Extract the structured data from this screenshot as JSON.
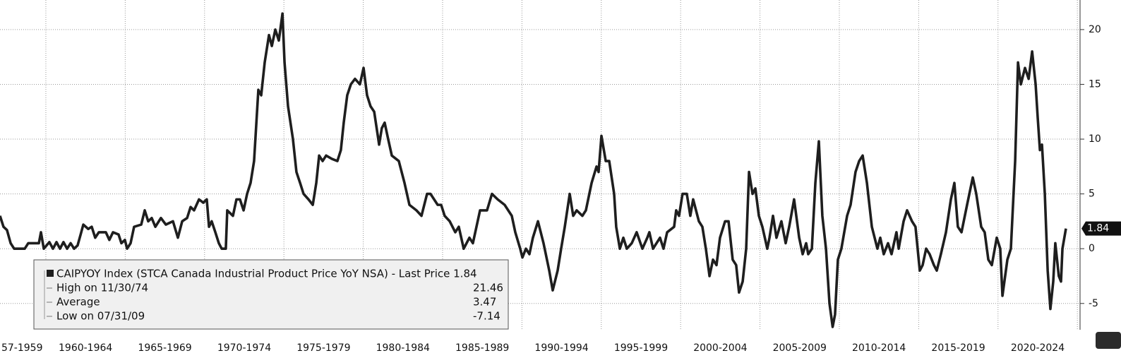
{
  "chart_data": {
    "type": "line",
    "x": [
      1957.11,
      1957.33,
      1957.55,
      1957.78,
      1958.0,
      1958.67,
      1958.89,
      1959.56,
      1959.69,
      1959.87,
      1960.22,
      1960.45,
      1960.67,
      1960.89,
      1961.11,
      1961.34,
      1961.56,
      1961.78,
      1962.0,
      1962.23,
      1962.36,
      1962.67,
      1962.89,
      1963.11,
      1963.34,
      1963.78,
      1964.0,
      1964.23,
      1964.58,
      1964.76,
      1964.98,
      1965.12,
      1965.34,
      1965.56,
      1966.01,
      1966.23,
      1966.45,
      1966.67,
      1966.9,
      1967.25,
      1967.56,
      1968.01,
      1968.32,
      1968.59,
      1968.9,
      1969.12,
      1969.34,
      1969.65,
      1969.92,
      1970.14,
      1970.28,
      1970.45,
      1970.68,
      1970.9,
      1971.08,
      1971.34,
      1971.43,
      1971.79,
      1972.01,
      1972.23,
      1972.46,
      1972.68,
      1972.9,
      1973.12,
      1973.39,
      1973.57,
      1973.79,
      1974.06,
      1974.24,
      1974.46,
      1974.68,
      1974.91,
      1975.04,
      1975.26,
      1975.57,
      1975.79,
      1976.02,
      1976.24,
      1976.55,
      1976.82,
      1977.04,
      1977.22,
      1977.44,
      1977.66,
      1978.02,
      1978.37,
      1978.59,
      1978.77,
      1978.99,
      1979.22,
      1979.48,
      1979.79,
      1980.02,
      1980.24,
      1980.46,
      1980.69,
      1981.0,
      1981.17,
      1981.35,
      1981.57,
      1981.8,
      1982.24,
      1982.6,
      1982.91,
      1983.35,
      1983.67,
      1984.02,
      1984.24,
      1984.69,
      1984.91,
      1985.13,
      1985.45,
      1985.8,
      1986.02,
      1986.33,
      1986.69,
      1986.91,
      1987.36,
      1987.8,
      1988.11,
      1988.47,
      1988.91,
      1989.36,
      1989.58,
      1989.89,
      1990.03,
      1990.25,
      1990.47,
      1990.69,
      1991.01,
      1991.36,
      1991.72,
      1991.94,
      1992.25,
      1992.47,
      1992.7,
      1993.01,
      1993.23,
      1993.45,
      1993.81,
      1994.03,
      1994.39,
      1994.7,
      1994.83,
      1995.01,
      1995.28,
      1995.5,
      1995.81,
      1995.94,
      1996.17,
      1996.39,
      1996.61,
      1996.92,
      1997.23,
      1997.59,
      1997.9,
      1998.03,
      1998.26,
      1998.7,
      1998.92,
      1999.15,
      1999.59,
      1999.72,
      1999.9,
      2000.12,
      2000.39,
      2000.61,
      2000.79,
      2001.15,
      2001.37,
      2001.59,
      2001.82,
      2002.04,
      2002.26,
      2002.48,
      2002.8,
      2003.02,
      2003.28,
      2003.5,
      2003.68,
      2003.91,
      2004.13,
      2004.31,
      2004.53,
      2004.71,
      2004.93,
      2005.15,
      2005.46,
      2005.6,
      2005.82,
      2006.04,
      2006.35,
      2006.62,
      2006.84,
      2007.15,
      2007.47,
      2007.69,
      2007.91,
      2008.04,
      2008.27,
      2008.49,
      2008.71,
      2008.93,
      2009.16,
      2009.38,
      2009.58,
      2009.73,
      2009.91,
      2010.13,
      2010.49,
      2010.71,
      2011.02,
      2011.25,
      2011.47,
      2011.74,
      2012.05,
      2012.4,
      2012.58,
      2012.8,
      2013.07,
      2013.29,
      2013.6,
      2013.74,
      2014.05,
      2014.27,
      2014.58,
      2014.8,
      2015.07,
      2015.25,
      2015.47,
      2015.69,
      2015.96,
      2016.14,
      2016.4,
      2016.72,
      2017.03,
      2017.25,
      2017.47,
      2017.7,
      2018.05,
      2018.41,
      2018.63,
      2018.94,
      2019.16,
      2019.39,
      2019.61,
      2019.92,
      2020.14,
      2020.28,
      2020.59,
      2020.81,
      2021.08,
      2021.26,
      2021.44,
      2021.7,
      2021.93,
      2022.15,
      2022.37,
      2022.5,
      2022.64,
      2022.77,
      2022.95,
      2023.13,
      2023.3,
      2023.48,
      2023.61,
      2023.83,
      2023.97,
      2024.06,
      2024.28
    ],
    "series": [
      {
        "name": "CAIPYOY Index (STCA Canada Industrial Product Price YoY NSA) - Last Price 1.84",
        "color": "#1e1e1e",
        "values": [
          3,
          2,
          1.7,
          0.5,
          0,
          0,
          0.5,
          0.5,
          1.5,
          0,
          0.6,
          0,
          0.6,
          0,
          0.6,
          0,
          0.5,
          0,
          0.3,
          1.5,
          2.2,
          1.8,
          2,
          1,
          1.5,
          1.5,
          0.8,
          1.5,
          1.3,
          0.5,
          0.8,
          0,
          0.5,
          2,
          2.2,
          3.5,
          2.5,
          2.8,
          2,
          2.8,
          2.2,
          2.5,
          1,
          2.5,
          2.8,
          3.8,
          3.5,
          4.5,
          4.2,
          4.5,
          2,
          2.5,
          1.5,
          0.5,
          0,
          0,
          3.5,
          3,
          4.5,
          4.5,
          3.5,
          5,
          6,
          8,
          14.5,
          14,
          17,
          19.5,
          18.5,
          20,
          19,
          21.46,
          17,
          13,
          10,
          7,
          6,
          5,
          4.5,
          4,
          6,
          8.5,
          8,
          8.5,
          8.2,
          8,
          9,
          11.5,
          14,
          15,
          15.5,
          15,
          16.5,
          14,
          13,
          12.5,
          9.5,
          11,
          11.5,
          10,
          8.5,
          8,
          6,
          4,
          3.5,
          3,
          5,
          5,
          4,
          4,
          3,
          2.5,
          1.5,
          2,
          0,
          1,
          0.5,
          3.5,
          3.5,
          5,
          4.5,
          4,
          3,
          1.5,
          0,
          -0.8,
          0,
          -0.5,
          1,
          2.5,
          0.5,
          -2,
          -3.8,
          -2,
          0,
          2,
          5,
          3,
          3.5,
          3,
          3.5,
          6,
          7.5,
          7,
          10.3,
          8,
          8,
          5,
          2,
          0,
          1,
          0,
          0.5,
          1.5,
          0,
          1,
          1.5,
          0,
          1,
          0,
          1.5,
          2,
          3.5,
          3,
          5,
          5,
          3,
          4.5,
          2.5,
          2,
          0,
          -2.5,
          -1,
          -1.5,
          1,
          2.5,
          2.5,
          -1,
          -1.5,
          -4,
          -3,
          0,
          7,
          5,
          5.5,
          3,
          2,
          0,
          1,
          3,
          1,
          2.5,
          0.5,
          2,
          4.5,
          1,
          -0.5,
          0.5,
          -0.5,
          0,
          6,
          9.8,
          3,
          0,
          -5,
          -7.14,
          -6,
          -1,
          0,
          3,
          4,
          7,
          8,
          8.5,
          6,
          2,
          0,
          1,
          -0.5,
          0.5,
          -0.5,
          1.5,
          0,
          2.5,
          3.5,
          2.5,
          2,
          -2,
          -1.5,
          0,
          -0.5,
          -1.5,
          -2,
          -0.5,
          1.5,
          4.5,
          6,
          2,
          1.5,
          4,
          6.5,
          5,
          2,
          1.5,
          -1,
          -1.5,
          1,
          0,
          -4.3,
          -1,
          0,
          8,
          17,
          15,
          16.5,
          15.5,
          18,
          15,
          12,
          9,
          9.5,
          5,
          -2,
          -5.5,
          -3,
          0.5,
          -2.5,
          -3,
          0,
          1.84
        ]
      }
    ],
    "xlim": [
      1957.11,
      2025.17
    ],
    "xgrid": [
      1960,
      1965,
      1970,
      1975,
      1980,
      1985,
      1990,
      1995,
      2000,
      2005,
      2010,
      2015,
      2020,
      2025
    ],
    "xticks": [
      {
        "value": 1958.5,
        "label": "57-1959"
      },
      {
        "value": 1962.5,
        "label": "1960-1964"
      },
      {
        "value": 1967.5,
        "label": "1965-1969"
      },
      {
        "value": 1972.5,
        "label": "1970-1974"
      },
      {
        "value": 1977.5,
        "label": "1975-1979"
      },
      {
        "value": 1982.5,
        "label": "1980-1984"
      },
      {
        "value": 1987.5,
        "label": "1985-1989"
      },
      {
        "value": 1992.5,
        "label": "1990-1994"
      },
      {
        "value": 1997.5,
        "label": "1995-1999"
      },
      {
        "value": 2002.5,
        "label": "2000-2004"
      },
      {
        "value": 2007.5,
        "label": "2005-2009"
      },
      {
        "value": 2012.5,
        "label": "2010-2014"
      },
      {
        "value": 2017.5,
        "label": "2015-2019"
      },
      {
        "value": 2022.5,
        "label": "2020-2024"
      }
    ],
    "ylim": [
      -7.4,
      22.7
    ],
    "yticks": [
      -5,
      0,
      5,
      10,
      15,
      20
    ],
    "grid": true,
    "last_price": 1.84,
    "legend": {
      "rows": [
        {
          "label": "High on 11/30/74",
          "value": 21.46
        },
        {
          "label": "Average",
          "value": 3.47
        },
        {
          "label": "Low on 07/31/09",
          "value": -7.14
        }
      ]
    }
  }
}
